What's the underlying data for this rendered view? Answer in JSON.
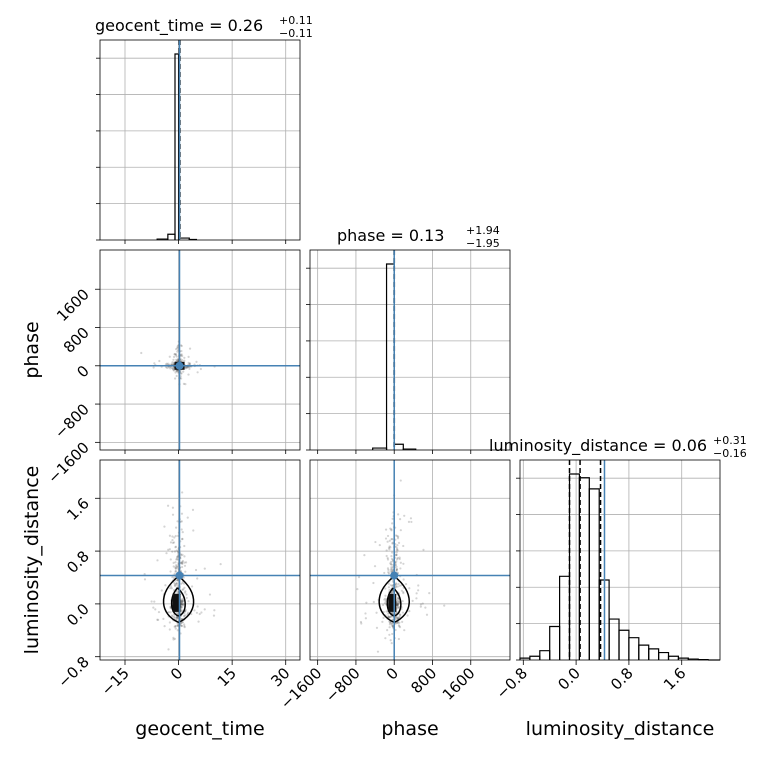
{
  "chart_data": {
    "type": "corner",
    "parameters": [
      "geocent_time",
      "phase",
      "luminosity_distance"
    ],
    "truth_color": "#4682b4",
    "grid": true,
    "panels": {
      "geocent_time": {
        "title_prefix": "geocent_time = 0.26",
        "title_plus": "+0.11",
        "title_minus": "−0.11",
        "range": [
          -22,
          34
        ],
        "ticks": [
          -15,
          0,
          15,
          30
        ],
        "tick_labels": [
          "−15",
          "0",
          "15",
          "30"
        ],
        "truth": 0.26,
        "quantiles": [
          0.15,
          0.26,
          0.37
        ],
        "hist_edges": [
          -6,
          -3,
          -1,
          0,
          3,
          5
        ],
        "hist_values": [
          0.5,
          3,
          97,
          1,
          0.3
        ]
      },
      "phase": {
        "title_prefix": "phase = 0.13",
        "title_plus": "+1.94",
        "title_minus": "−1.95",
        "range": [
          -1760,
          2420
        ],
        "ticks": [
          -1600,
          -800,
          0,
          800,
          1600
        ],
        "tick_labels": [
          "−1600",
          "−800",
          "0",
          "800",
          "1600"
        ],
        "truth": 0,
        "quantiles": [
          -1.82,
          0.13,
          2.07
        ],
        "hist_edges": [
          -450,
          -160,
          0,
          190,
          450
        ],
        "hist_values": [
          1,
          97,
          3,
          0.5
        ]
      },
      "luminosity_distance": {
        "title_prefix": "luminosity_distance = 0.06",
        "title_plus": "+0.31",
        "title_minus": "−0.16",
        "range": [
          -0.85,
          2.18
        ],
        "ticks": [
          -0.8,
          0.0,
          0.8,
          1.6
        ],
        "tick_labels": [
          "−0.8",
          "0.0",
          "0.8",
          "1.6"
        ],
        "truth": 0.43,
        "quantiles": [
          -0.1,
          0.06,
          0.37
        ],
        "hist_edges": [
          -0.85,
          -0.7,
          -0.55,
          -0.4,
          -0.25,
          -0.1,
          0.05,
          0.2,
          0.35,
          0.5,
          0.65,
          0.8,
          0.95,
          1.1,
          1.25,
          1.4,
          1.55,
          1.7,
          1.85,
          2.0,
          2.18
        ],
        "hist_values": [
          1,
          2,
          5,
          18,
          45,
          100,
          98,
          92,
          43,
          22,
          16,
          12,
          8,
          6,
          4,
          2,
          1,
          0.5,
          0.2,
          0
        ]
      }
    },
    "axis_labels": {
      "x": [
        "geocent_time",
        "phase",
        "luminosity_distance"
      ],
      "y": [
        "phase",
        "luminosity_distance"
      ]
    }
  }
}
